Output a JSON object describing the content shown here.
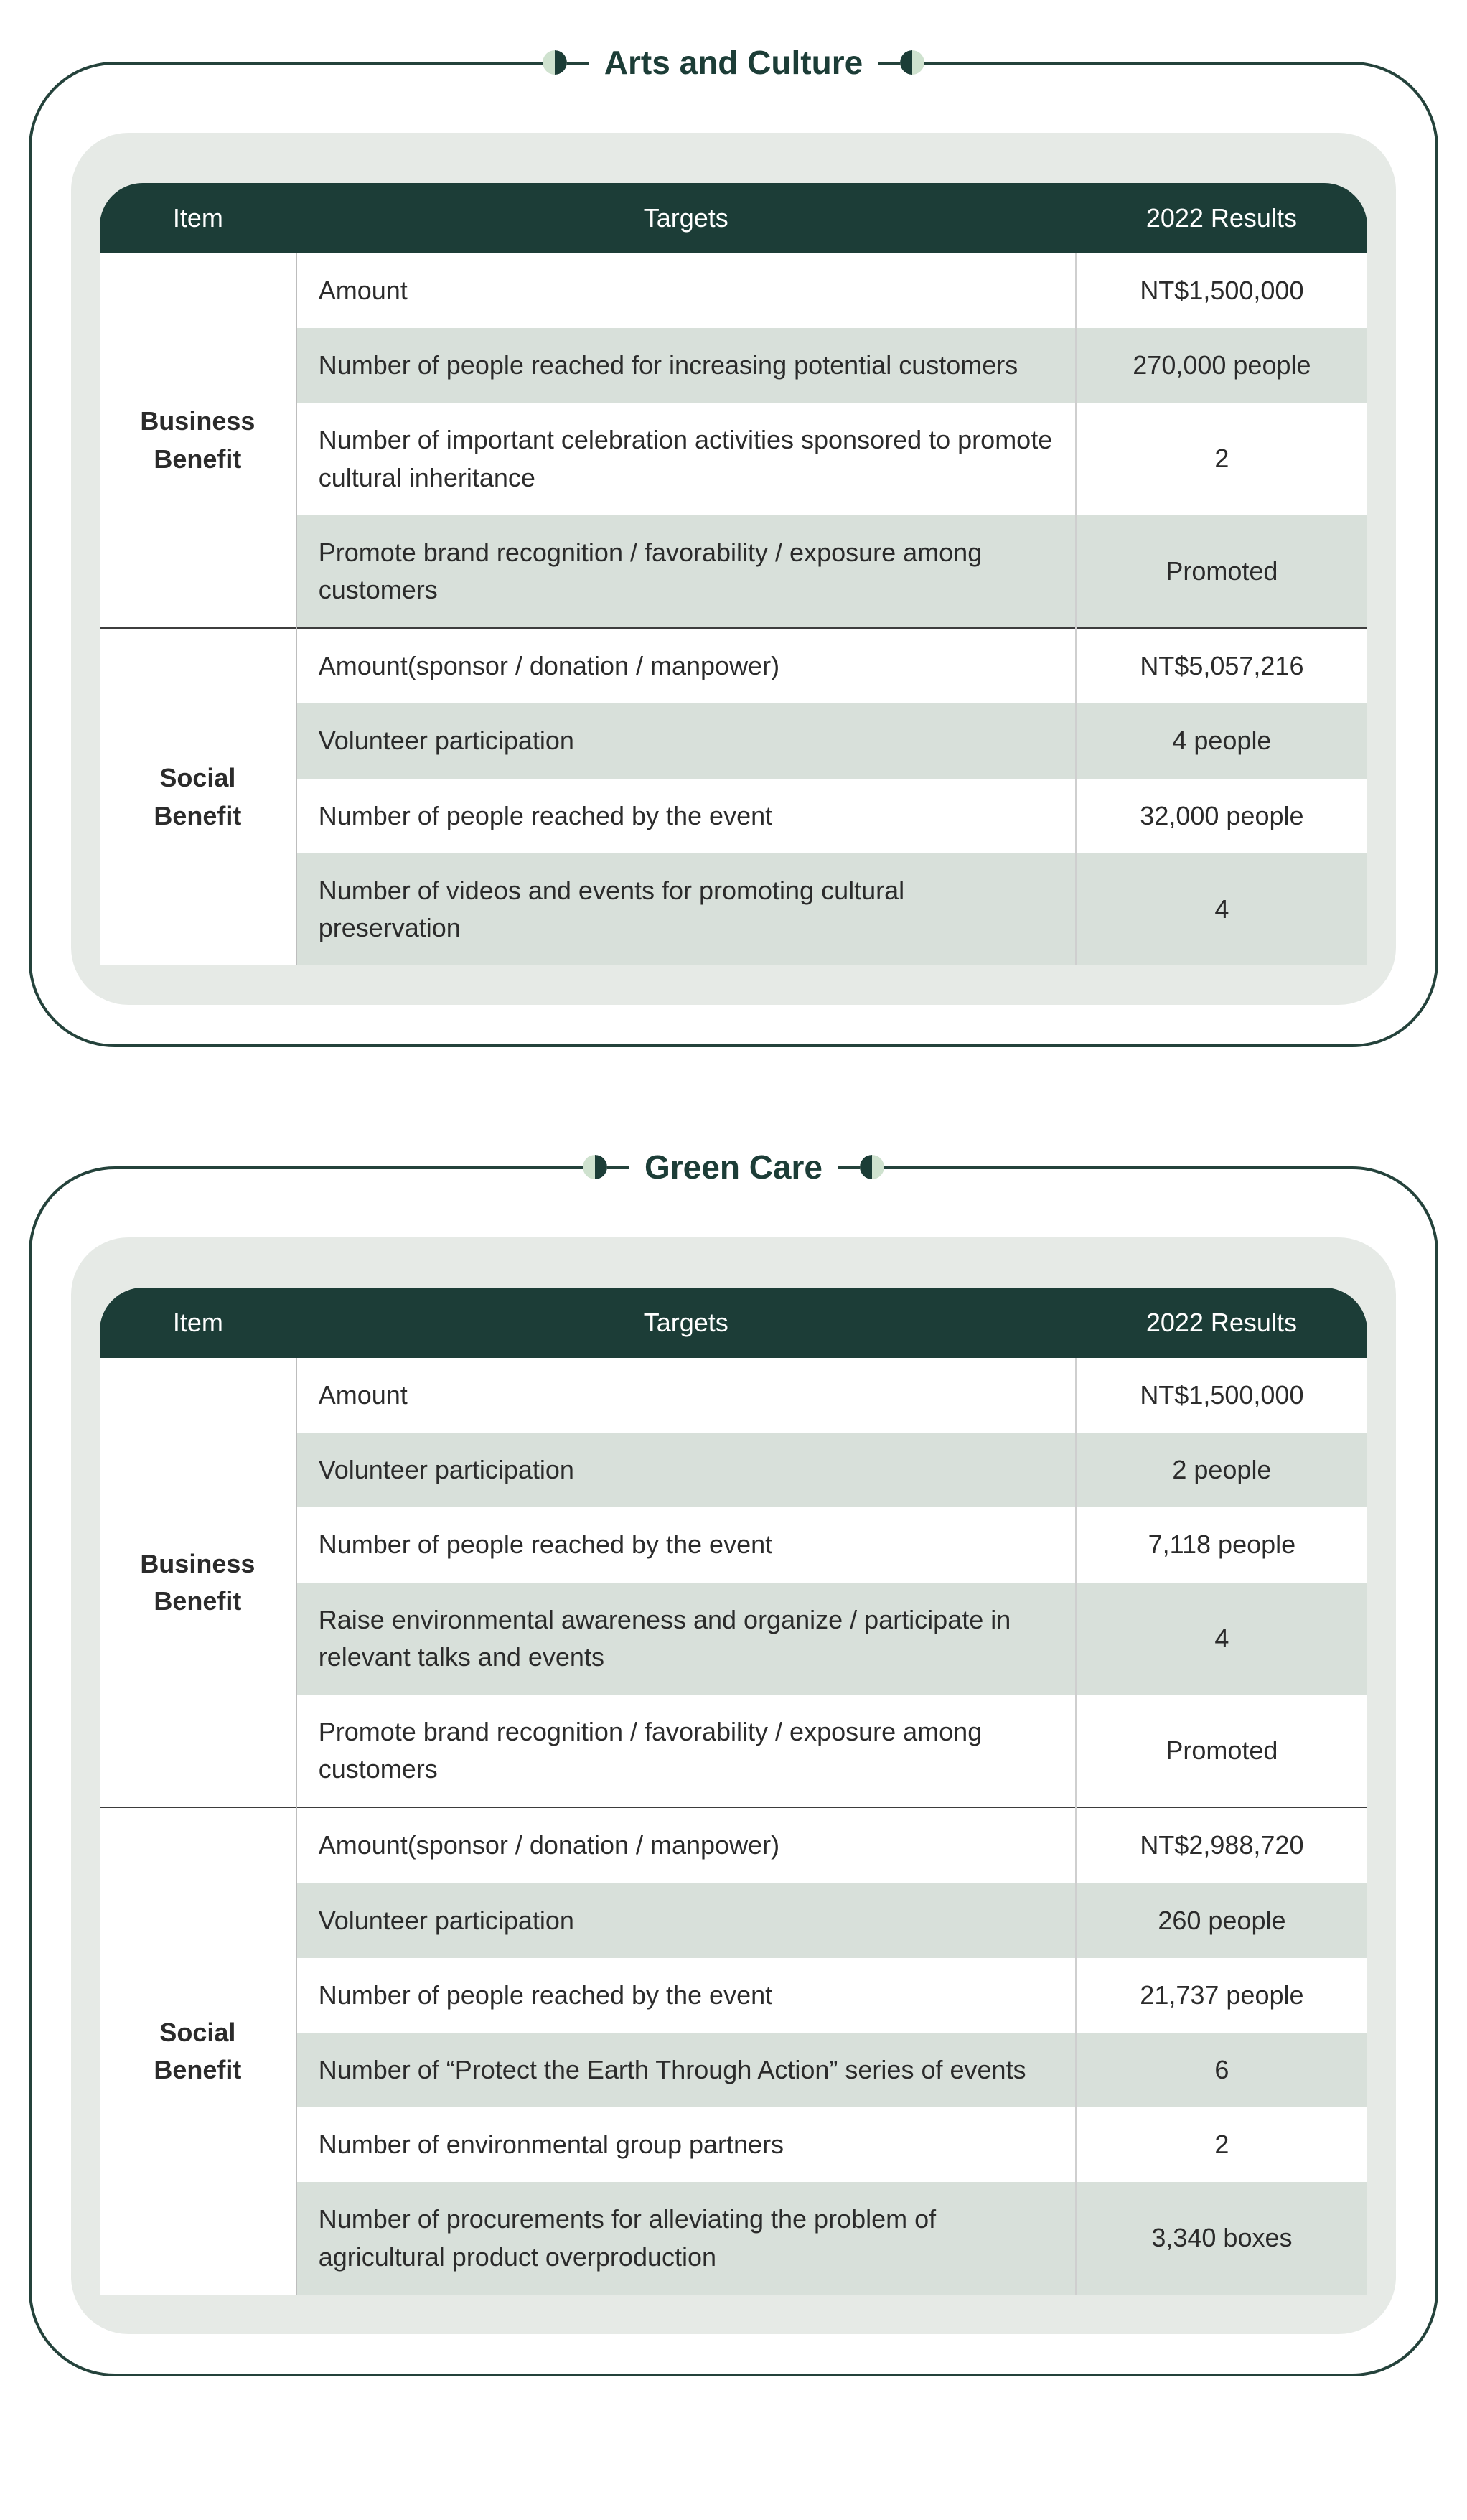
{
  "sections": [
    {
      "title": "Arts and Culture",
      "columns": [
        "Item",
        "Targets",
        "2022 Results"
      ],
      "groups": [
        {
          "name": "Business Benefit",
          "rows": [
            {
              "target": "Amount",
              "result": "NT$1,500,000"
            },
            {
              "target": "Number of people reached for increasing potential customers",
              "result": "270,000 people"
            },
            {
              "target": "Number of important celebration activities sponsored to promote cultural inheritance",
              "result": "2"
            },
            {
              "target": "Promote brand recognition / favorability / exposure among customers",
              "result": "Promoted"
            }
          ]
        },
        {
          "name": "Social Benefit",
          "rows": [
            {
              "target": "Amount(sponsor / donation / manpower)",
              "result": "NT$5,057,216"
            },
            {
              "target": "Volunteer participation",
              "result": "4 people"
            },
            {
              "target": "Number of people reached by the event",
              "result": "32,000 people"
            },
            {
              "target": "Number of videos and events for promoting cultural preservation",
              "result": "4"
            }
          ]
        }
      ]
    },
    {
      "title": "Green Care",
      "columns": [
        "Item",
        "Targets",
        "2022 Results"
      ],
      "groups": [
        {
          "name": "Business Benefit",
          "rows": [
            {
              "target": "Amount",
              "result": "NT$1,500,000"
            },
            {
              "target": "Volunteer participation",
              "result": "2 people"
            },
            {
              "target": "Number of people reached by the event",
              "result": "7,118 people"
            },
            {
              "target": "Raise environmental awareness and organize / participate in relevant talks and events",
              "result": "4"
            },
            {
              "target": "Promote brand recognition / favorability / exposure among customers",
              "result": "Promoted"
            }
          ]
        },
        {
          "name": "Social Benefit",
          "rows": [
            {
              "target": "Amount(sponsor / donation / manpower)",
              "result": "NT$2,988,720"
            },
            {
              "target": "Volunteer participation",
              "result": "260 people"
            },
            {
              "target": "Number of people reached by the event",
              "result": "21,737 people"
            },
            {
              "target": "Number of “Protect the Earth Through Action” series of events",
              "result": "6"
            },
            {
              "target": "Number of environmental group partners",
              "result": "2"
            },
            {
              "target": "Number of procurements for alleviating the problem of agricultural product overproduction",
              "result": "3,340 boxes"
            }
          ]
        }
      ]
    }
  ]
}
